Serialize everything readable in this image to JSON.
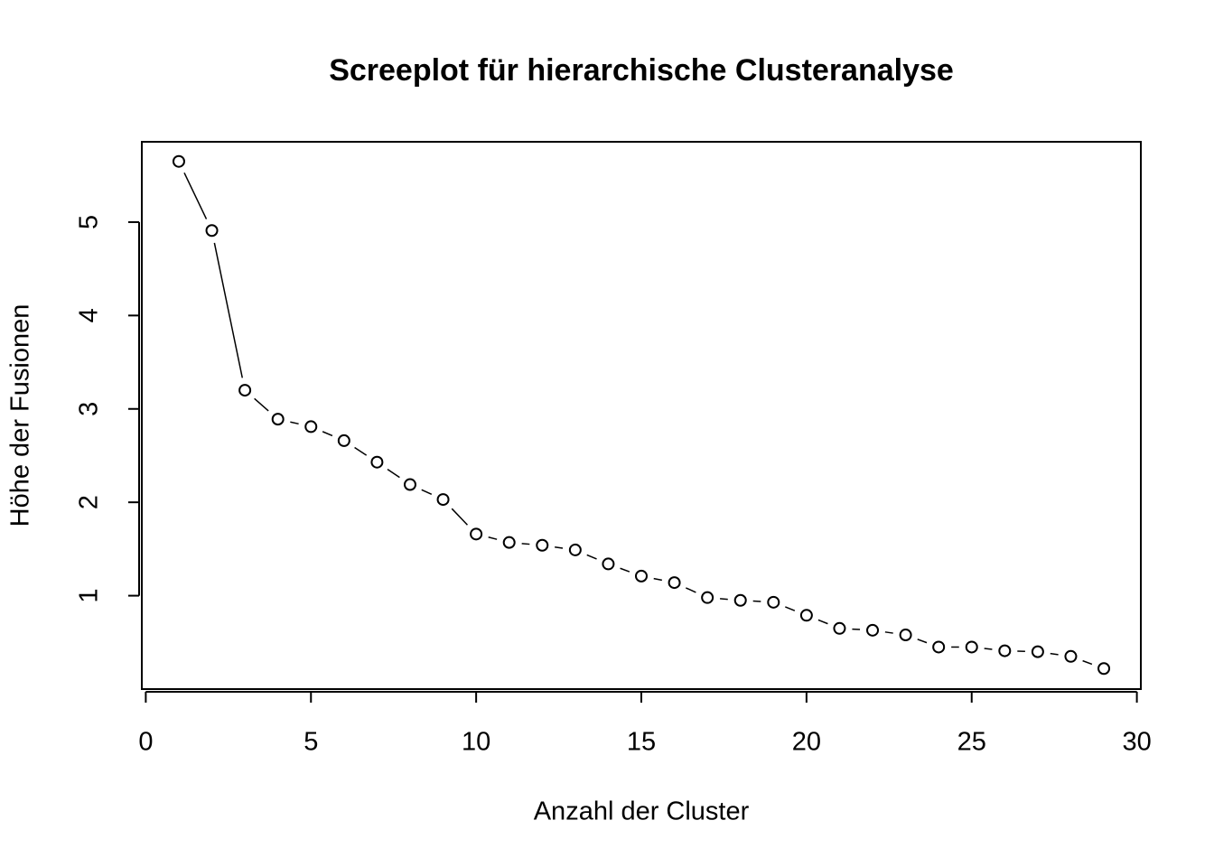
{
  "chart_data": {
    "type": "line",
    "title": "Screeplot für hierarchische Clusteranalyse",
    "x_label": "Anzahl der Cluster",
    "y_label": "Höhe der Fusionen",
    "x": [
      1,
      2,
      3,
      4,
      5,
      6,
      7,
      8,
      9,
      10,
      11,
      12,
      13,
      14,
      15,
      16,
      17,
      18,
      19,
      20,
      21,
      22,
      23,
      24,
      25,
      26,
      27,
      28,
      29
    ],
    "series": [
      {
        "color": "#000000",
        "values": [
          5.65,
          4.91,
          3.2,
          2.89,
          2.81,
          2.66,
          2.43,
          2.19,
          2.03,
          1.66,
          1.57,
          1.54,
          1.49,
          1.34,
          1.21,
          1.14,
          0.98,
          0.95,
          0.93,
          0.79,
          0.65,
          0.63,
          0.58,
          0.45,
          0.45,
          0.41,
          0.4,
          0.35,
          0.22
        ]
      }
    ],
    "xlim": [
      -0.12,
      30.12
    ],
    "ylim": [
      0.0,
      5.86
    ],
    "xticks": [
      0,
      5,
      10,
      15,
      20,
      25,
      30
    ],
    "yticks": [
      1,
      2,
      3,
      4,
      5
    ]
  }
}
